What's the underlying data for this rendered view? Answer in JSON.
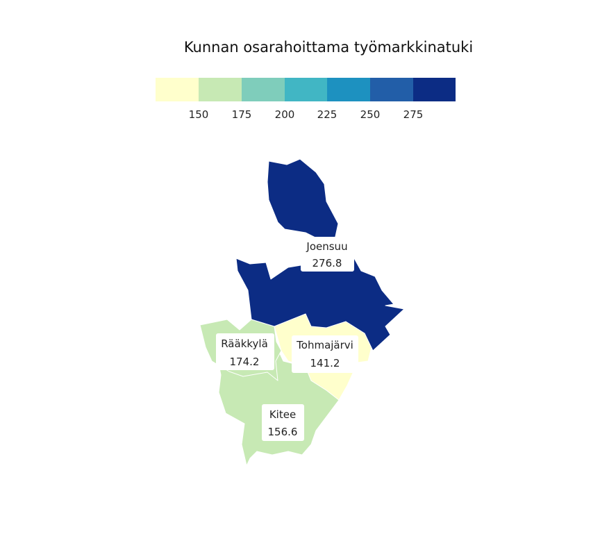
{
  "title": "Kunnan osarahoittama työmarkkinatuki",
  "legend": {
    "colors": [
      "#ffffcc",
      "#c7e9b4",
      "#7fcdbb",
      "#41b6c4",
      "#1d91c0",
      "#225ea8",
      "#0c2c84"
    ],
    "ticks": [
      "150",
      "175",
      "200",
      "225",
      "250",
      "275"
    ]
  },
  "regions": [
    {
      "name": "Joensuu",
      "value": "276.8",
      "color": "#0c2c84"
    },
    {
      "name": "Rääkkylä",
      "value": "174.2",
      "color": "#c7e9b4"
    },
    {
      "name": "Tohmajärvi",
      "value": "141.2",
      "color": "#ffffcc"
    },
    {
      "name": "Kitee",
      "value": "156.6",
      "color": "#c7e9b4"
    }
  ]
}
